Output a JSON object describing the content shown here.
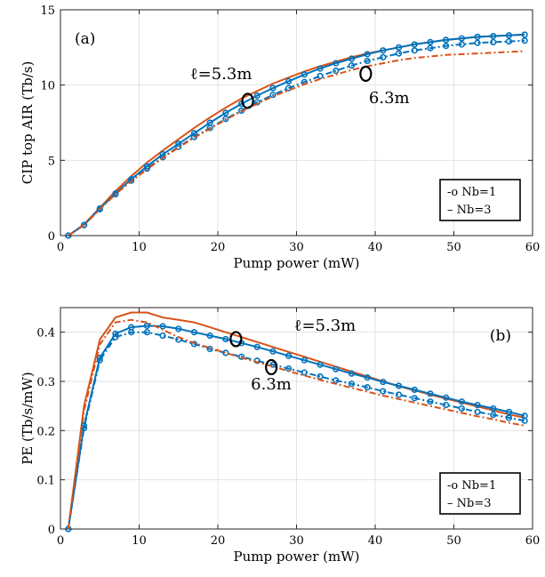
{
  "chart_data": [
    {
      "type": "line",
      "panel_label": "(a)",
      "xlabel": "Pump power (mW)",
      "ylabel": "CIP top AIR (Tb/s)",
      "xlim": [
        0,
        60
      ],
      "ylim": [
        0,
        15
      ],
      "xticks": [
        0,
        10,
        20,
        30,
        40,
        50,
        60
      ],
      "yticks": [
        0,
        5,
        10,
        15
      ],
      "grid": true,
      "legend": {
        "placement": "bottom-right",
        "entries": [
          "-o Nb=1",
          "– Nb=3"
        ]
      },
      "annotations": [
        {
          "text": "ℓ=5.3m",
          "x": 16.5,
          "y": 10.4,
          "circle": [
            23.8,
            8.95
          ]
        },
        {
          "text": "6.3m",
          "x": 39.2,
          "y": 8.8,
          "circle": [
            38.8,
            10.75
          ]
        }
      ],
      "series": [
        {
          "length": "5.3m",
          "Nb": 3,
          "style": "solid",
          "color": "#d95319",
          "x": [
            1,
            3,
            5,
            7,
            9,
            11,
            13,
            15,
            17,
            19,
            21,
            23,
            25,
            27,
            29,
            31,
            33,
            35,
            37,
            39,
            41,
            43,
            45,
            47,
            49,
            51,
            53,
            55,
            57,
            59
          ],
          "y": [
            0,
            0.75,
            1.85,
            2.95,
            3.95,
            4.85,
            5.65,
            6.4,
            7.15,
            7.85,
            8.5,
            9.1,
            9.6,
            10.1,
            10.5,
            10.9,
            11.25,
            11.55,
            11.85,
            12.1,
            12.3,
            12.5,
            12.7,
            12.85,
            13.0,
            13.1,
            13.2,
            13.25,
            13.3,
            13.35
          ]
        },
        {
          "length": "5.3m",
          "Nb": 1,
          "style": "solid-o",
          "color": "#0072bd",
          "x": [
            1,
            3,
            5,
            7,
            9,
            11,
            13,
            15,
            17,
            19,
            21,
            23,
            25,
            27,
            29,
            31,
            33,
            35,
            37,
            39,
            41,
            43,
            45,
            47,
            49,
            51,
            53,
            55,
            57,
            59
          ],
          "y": [
            0,
            0.7,
            1.8,
            2.8,
            3.75,
            4.6,
            5.4,
            6.1,
            6.8,
            7.5,
            8.15,
            8.75,
            9.3,
            9.8,
            10.25,
            10.7,
            11.1,
            11.45,
            11.75,
            12.05,
            12.3,
            12.5,
            12.7,
            12.85,
            13.0,
            13.1,
            13.2,
            13.25,
            13.3,
            13.35
          ]
        },
        {
          "length": "6.3m",
          "Nb": 1,
          "style": "dashdot-o",
          "color": "#0072bd",
          "x": [
            1,
            3,
            5,
            7,
            9,
            11,
            13,
            15,
            17,
            19,
            21,
            23,
            25,
            27,
            29,
            31,
            33,
            35,
            37,
            39,
            41,
            43,
            45,
            47,
            49,
            51,
            53,
            55,
            57,
            59
          ],
          "y": [
            0,
            0.7,
            1.75,
            2.75,
            3.65,
            4.45,
            5.2,
            5.9,
            6.55,
            7.15,
            7.75,
            8.3,
            8.85,
            9.35,
            9.8,
            10.2,
            10.6,
            10.95,
            11.3,
            11.6,
            11.85,
            12.1,
            12.3,
            12.45,
            12.6,
            12.7,
            12.8,
            12.85,
            12.9,
            12.95
          ]
        },
        {
          "length": "6.3m",
          "Nb": 3,
          "style": "dashdot",
          "color": "#d95319",
          "x": [
            1,
            3,
            5,
            7,
            9,
            11,
            13,
            15,
            17,
            19,
            21,
            23,
            25,
            27,
            29,
            31,
            33,
            35,
            37,
            39,
            41,
            43,
            45,
            47,
            49,
            51,
            53,
            55,
            57,
            59
          ],
          "y": [
            0,
            0.7,
            1.75,
            2.75,
            3.6,
            4.4,
            5.15,
            5.85,
            6.5,
            7.1,
            7.7,
            8.25,
            8.75,
            9.25,
            9.65,
            10.05,
            10.4,
            10.7,
            11.0,
            11.25,
            11.45,
            11.65,
            11.8,
            11.9,
            12.0,
            12.05,
            12.1,
            12.15,
            12.2,
            12.25
          ]
        }
      ]
    },
    {
      "type": "line",
      "panel_label": "(b)",
      "xlabel": "Pump power (mW)",
      "ylabel": "PE (Tb/s/mW)",
      "xlim": [
        0,
        60
      ],
      "ylim": [
        0,
        0.45
      ],
      "xticks": [
        0,
        10,
        20,
        30,
        40,
        50,
        60
      ],
      "yticks": [
        0,
        0.1,
        0.2,
        0.3,
        0.4
      ],
      "grid": true,
      "legend": {
        "placement": "bottom-right",
        "entries": [
          "-o Nb=1",
          "– Nb=3"
        ]
      },
      "annotations": [
        {
          "text": "ℓ=5.3m",
          "x": 29.7,
          "y": 0.403,
          "circle": [
            22.3,
            0.386
          ]
        },
        {
          "text": "6.3m",
          "x": 24.2,
          "y": 0.284,
          "circle": [
            26.8,
            0.329
          ]
        }
      ],
      "series": [
        {
          "length": "5.3m",
          "Nb": 3,
          "style": "solid",
          "color": "#d95319",
          "x": [
            1,
            3,
            5,
            7,
            9,
            11,
            13,
            15,
            17,
            19,
            21,
            23,
            25,
            27,
            29,
            31,
            33,
            35,
            37,
            39,
            41,
            43,
            45,
            47,
            49,
            51,
            53,
            55,
            57,
            59
          ],
          "y": [
            0,
            0.25,
            0.385,
            0.43,
            0.44,
            0.44,
            0.43,
            0.425,
            0.42,
            0.41,
            0.4,
            0.39,
            0.38,
            0.37,
            0.36,
            0.35,
            0.34,
            0.33,
            0.32,
            0.31,
            0.3,
            0.29,
            0.282,
            0.273,
            0.265,
            0.257,
            0.249,
            0.241,
            0.233,
            0.226
          ]
        },
        {
          "length": "5.3m",
          "Nb": 1,
          "style": "solid-o",
          "color": "#0072bd",
          "x": [
            1,
            3,
            5,
            7,
            9,
            11,
            13,
            15,
            17,
            19,
            21,
            23,
            25,
            27,
            29,
            31,
            33,
            35,
            37,
            39,
            41,
            43,
            45,
            47,
            49,
            51,
            53,
            55,
            57,
            59
          ],
          "y": [
            0,
            0.21,
            0.348,
            0.397,
            0.41,
            0.413,
            0.412,
            0.407,
            0.4,
            0.393,
            0.386,
            0.378,
            0.37,
            0.361,
            0.352,
            0.343,
            0.334,
            0.325,
            0.316,
            0.308,
            0.299,
            0.291,
            0.283,
            0.275,
            0.267,
            0.259,
            0.252,
            0.245,
            0.238,
            0.23
          ]
        },
        {
          "length": "6.3m",
          "Nb": 1,
          "style": "dashdot-o",
          "color": "#0072bd",
          "x": [
            1,
            3,
            5,
            7,
            9,
            11,
            13,
            15,
            17,
            19,
            21,
            23,
            25,
            27,
            29,
            31,
            33,
            35,
            37,
            39,
            41,
            43,
            45,
            47,
            49,
            51,
            53,
            55,
            57,
            59
          ],
          "y": [
            0,
            0.205,
            0.343,
            0.39,
            0.4,
            0.4,
            0.393,
            0.385,
            0.376,
            0.366,
            0.358,
            0.35,
            0.342,
            0.334,
            0.326,
            0.318,
            0.31,
            0.302,
            0.295,
            0.288,
            0.28,
            0.273,
            0.266,
            0.259,
            0.252,
            0.245,
            0.238,
            0.232,
            0.226,
            0.22
          ]
        },
        {
          "length": "6.3m",
          "Nb": 3,
          "style": "dashdot",
          "color": "#d95319",
          "x": [
            1,
            3,
            5,
            7,
            9,
            11,
            13,
            15,
            17,
            19,
            21,
            23,
            25,
            27,
            29,
            31,
            33,
            35,
            37,
            39,
            41,
            43,
            45,
            47,
            49,
            51,
            53,
            55,
            57,
            59
          ],
          "y": [
            0,
            0.24,
            0.375,
            0.42,
            0.425,
            0.42,
            0.405,
            0.39,
            0.378,
            0.368,
            0.358,
            0.348,
            0.339,
            0.33,
            0.321,
            0.312,
            0.303,
            0.295,
            0.287,
            0.279,
            0.271,
            0.264,
            0.257,
            0.25,
            0.243,
            0.236,
            0.229,
            0.223,
            0.216,
            0.21
          ]
        }
      ]
    }
  ]
}
